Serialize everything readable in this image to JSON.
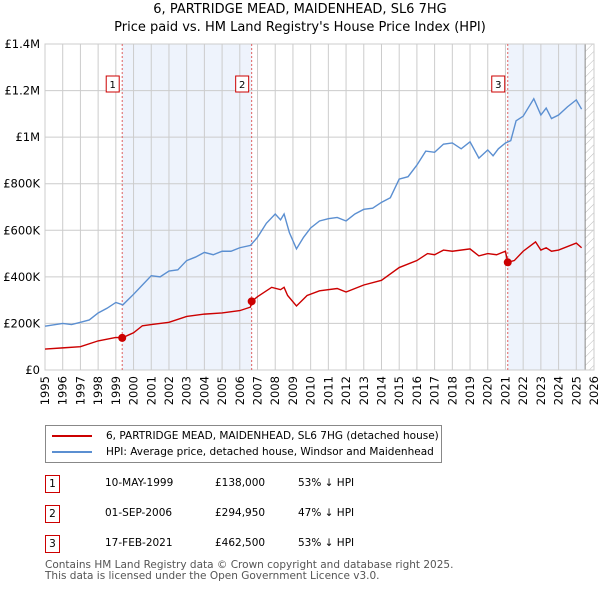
{
  "chart_data": {
    "type": "line",
    "title": "6, PARTRIDGE MEAD, MAIDENHEAD, SL6 7HG",
    "subtitle": "Price paid vs. HM Land Registry's House Price Index (HPI)",
    "xlim": [
      1995,
      2026
    ],
    "ylim": [
      0,
      1400000
    ],
    "x_ticks": [
      "1995",
      "1996",
      "1997",
      "1998",
      "1999",
      "2000",
      "2001",
      "2002",
      "2003",
      "2004",
      "2005",
      "2006",
      "2007",
      "2008",
      "2009",
      "2010",
      "2011",
      "2012",
      "2013",
      "2014",
      "2015",
      "2016",
      "2017",
      "2018",
      "2019",
      "2020",
      "2021",
      "2022",
      "2023",
      "2024",
      "2025",
      "2026"
    ],
    "y_ticks": [
      {
        "v": 0,
        "label": "£0"
      },
      {
        "v": 200000,
        "label": "£200K"
      },
      {
        "v": 400000,
        "label": "£400K"
      },
      {
        "v": 600000,
        "label": "£600K"
      },
      {
        "v": 800000,
        "label": "£800K"
      },
      {
        "v": 1000000,
        "label": "£1M"
      },
      {
        "v": 1200000,
        "label": "£1.2M"
      },
      {
        "v": 1400000,
        "label": "£1.4M"
      }
    ],
    "grid": true,
    "data_end": 2025.5,
    "series": [
      {
        "name": "6, PARTRIDGE MEAD, MAIDENHEAD, SL6 7HG (detached house)",
        "color": "#cc0000",
        "x": [
          1995,
          1996,
          1997,
          1998,
          1999,
          1999.36,
          2000,
          2000.5,
          2001,
          2002,
          2003,
          2004,
          2005,
          2006,
          2006.6,
          2006.67,
          2007,
          2007.8,
          2008.3,
          2008.5,
          2008.7,
          2009.2,
          2009.8,
          2010.5,
          2011.5,
          2012,
          2013,
          2014,
          2015,
          2016,
          2016.6,
          2017,
          2017.5,
          2018,
          2019,
          2019.5,
          2020,
          2020.5,
          2021,
          2021.13,
          2021.5,
          2022,
          2022.7,
          2023,
          2023.3,
          2023.6,
          2024,
          2025,
          2025.3
        ],
        "y": [
          90000,
          95000,
          100000,
          125000,
          140000,
          138000,
          160000,
          190000,
          195000,
          205000,
          230000,
          240000,
          245000,
          255000,
          270000,
          294950,
          315000,
          355000,
          345000,
          355000,
          320000,
          275000,
          320000,
          340000,
          350000,
          335000,
          365000,
          385000,
          440000,
          470000,
          500000,
          495000,
          515000,
          510000,
          520000,
          490000,
          500000,
          495000,
          510000,
          462500,
          470000,
          510000,
          550000,
          515000,
          525000,
          510000,
          515000,
          545000,
          525000
        ]
      },
      {
        "name": "HPI: Average price, detached house, Windsor and Maidenhead",
        "color": "#5b8fd1",
        "x": [
          1995,
          1996,
          1996.5,
          1997,
          1997.5,
          1998,
          1998.5,
          1999,
          1999.4,
          2000,
          2000.5,
          2001,
          2001.5,
          2002,
          2002.5,
          2003,
          2003.5,
          2004,
          2004.5,
          2005,
          2005.5,
          2006,
          2006.6,
          2007,
          2007.5,
          2008,
          2008.3,
          2008.5,
          2008.8,
          2009.2,
          2009.6,
          2010,
          2010.5,
          2011,
          2011.5,
          2012,
          2012.5,
          2013,
          2013.5,
          2014,
          2014.5,
          2015,
          2015.5,
          2016,
          2016.5,
          2017,
          2017.5,
          2018,
          2018.5,
          2019,
          2019.5,
          2020,
          2020.3,
          2020.6,
          2021,
          2021.3,
          2021.6,
          2022,
          2022.6,
          2023,
          2023.3,
          2023.6,
          2024,
          2024.5,
          2025,
          2025.3
        ],
        "y": [
          188000,
          200000,
          195000,
          205000,
          215000,
          245000,
          265000,
          290000,
          280000,
          325000,
          365000,
          405000,
          400000,
          425000,
          430000,
          470000,
          485000,
          505000,
          495000,
          510000,
          510000,
          525000,
          535000,
          570000,
          630000,
          670000,
          645000,
          670000,
          590000,
          520000,
          570000,
          610000,
          640000,
          650000,
          655000,
          640000,
          670000,
          690000,
          695000,
          720000,
          740000,
          820000,
          830000,
          880000,
          940000,
          935000,
          970000,
          975000,
          950000,
          980000,
          910000,
          945000,
          920000,
          950000,
          975000,
          985000,
          1070000,
          1090000,
          1165000,
          1095000,
          1125000,
          1080000,
          1095000,
          1130000,
          1160000,
          1120000
        ]
      }
    ],
    "sales": [
      {
        "n": "1",
        "x": 1999.36,
        "date": "10-MAY-1999",
        "price": "£138,000",
        "price_value": 138000,
        "hpi": "53% ↓ HPI"
      },
      {
        "n": "2",
        "x": 2006.67,
        "date": "01-SEP-2006",
        "price": "£294,950",
        "price_value": 294950,
        "hpi": "47% ↓ HPI"
      },
      {
        "n": "3",
        "x": 2021.13,
        "date": "17-FEB-2021",
        "price": "£462,500",
        "price_value": 462500,
        "hpi": "53% ↓ HPI"
      }
    ]
  },
  "footer": {
    "line1": "Contains HM Land Registry data © Crown copyright and database right 2025.",
    "line2": "This data is licensed under the Open Government Licence v3.0."
  }
}
